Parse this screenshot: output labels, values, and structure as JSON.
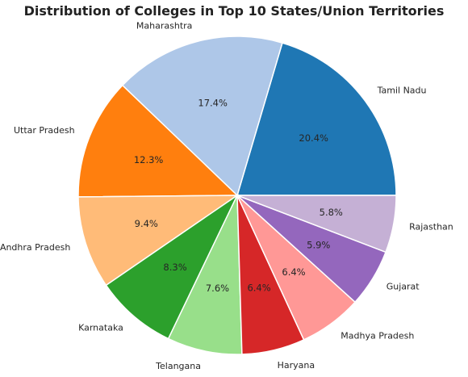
{
  "chart_data": {
    "type": "pie",
    "title": "Distribution of Colleges in Top 10 States/Union Territories",
    "categories": [
      "Tamil Nadu",
      "Maharashtra",
      "Uttar Pradesh",
      "Andhra Pradesh",
      "Karnataka",
      "Telangana",
      "Haryana",
      "Madhya Pradesh",
      "Gujarat",
      "Rajasthan"
    ],
    "values": [
      20.4,
      17.4,
      12.3,
      9.4,
      8.3,
      7.6,
      6.4,
      6.4,
      5.9,
      5.8
    ],
    "value_labels": [
      "20.4%",
      "17.4%",
      "12.3%",
      "9.4%",
      "8.3%",
      "7.6%",
      "6.4%",
      "6.4%",
      "5.9%",
      "5.8%"
    ],
    "colors": [
      "#1f77b4",
      "#aec7e8",
      "#ff7f0e",
      "#ffbb78",
      "#2ca02c",
      "#98df8a",
      "#d62728",
      "#ff9896",
      "#9467bd",
      "#c5b0d5"
    ],
    "start_angle": 0,
    "direction": "counterclockwise"
  }
}
